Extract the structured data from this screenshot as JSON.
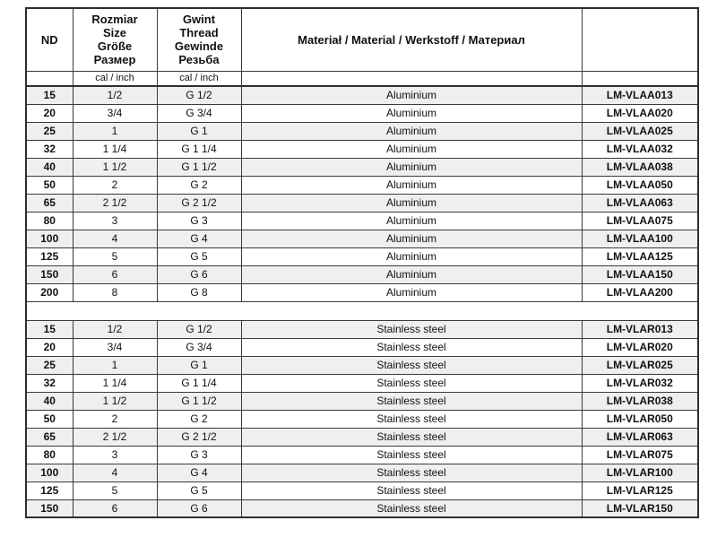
{
  "table": {
    "headers": {
      "nd": "ND",
      "size_title": "Rozmiar\nSize\nGröße\nРазмер",
      "thread_title": "Gwint\nThread\nGewinde\nРезьба",
      "material_title": "Materiał / Material / Werkstoff / Материал",
      "part_title": "",
      "size_unit": "cal / inch",
      "thread_unit": "cal / inch"
    },
    "sections": [
      {
        "name": "aluminium",
        "rows": [
          {
            "nd": "15",
            "size": "1/2",
            "thread": "G 1/2",
            "material": "Aluminium",
            "part": "LM-VLAA013"
          },
          {
            "nd": "20",
            "size": "3/4",
            "thread": "G 3/4",
            "material": "Aluminium",
            "part": "LM-VLAA020"
          },
          {
            "nd": "25",
            "size": "1",
            "thread": "G 1",
            "material": "Aluminium",
            "part": "LM-VLAA025"
          },
          {
            "nd": "32",
            "size": "1 1/4",
            "thread": "G 1 1/4",
            "material": "Aluminium",
            "part": "LM-VLAA032"
          },
          {
            "nd": "40",
            "size": "1 1/2",
            "thread": "G 1 1/2",
            "material": "Aluminium",
            "part": "LM-VLAA038"
          },
          {
            "nd": "50",
            "size": "2",
            "thread": "G 2",
            "material": "Aluminium",
            "part": "LM-VLAA050"
          },
          {
            "nd": "65",
            "size": "2 1/2",
            "thread": "G 2 1/2",
            "material": "Aluminium",
            "part": "LM-VLAA063"
          },
          {
            "nd": "80",
            "size": "3",
            "thread": "G 3",
            "material": "Aluminium",
            "part": "LM-VLAA075"
          },
          {
            "nd": "100",
            "size": "4",
            "thread": "G 4",
            "material": "Aluminium",
            "part": "LM-VLAA100"
          },
          {
            "nd": "125",
            "size": "5",
            "thread": "G 5",
            "material": "Aluminium",
            "part": "LM-VLAA125"
          },
          {
            "nd": "150",
            "size": "6",
            "thread": "G 6",
            "material": "Aluminium",
            "part": "LM-VLAA150"
          },
          {
            "nd": "200",
            "size": "8",
            "thread": "G 8",
            "material": "Aluminium",
            "part": "LM-VLAA200"
          }
        ]
      },
      {
        "name": "stainless-steel",
        "rows": [
          {
            "nd": "15",
            "size": "1/2",
            "thread": "G 1/2",
            "material": "Stainless steel",
            "part": "LM-VLAR013"
          },
          {
            "nd": "20",
            "size": "3/4",
            "thread": "G 3/4",
            "material": "Stainless steel",
            "part": "LM-VLAR020"
          },
          {
            "nd": "25",
            "size": "1",
            "thread": "G 1",
            "material": "Stainless steel",
            "part": "LM-VLAR025"
          },
          {
            "nd": "32",
            "size": "1 1/4",
            "thread": "G 1 1/4",
            "material": "Stainless steel",
            "part": "LM-VLAR032"
          },
          {
            "nd": "40",
            "size": "1 1/2",
            "thread": "G 1 1/2",
            "material": "Stainless steel",
            "part": "LM-VLAR038"
          },
          {
            "nd": "50",
            "size": "2",
            "thread": "G 2",
            "material": "Stainless steel",
            "part": "LM-VLAR050"
          },
          {
            "nd": "65",
            "size": "2 1/2",
            "thread": "G 2 1/2",
            "material": "Stainless steel",
            "part": "LM-VLAR063"
          },
          {
            "nd": "80",
            "size": "3",
            "thread": "G 3",
            "material": "Stainless steel",
            "part": "LM-VLAR075"
          },
          {
            "nd": "100",
            "size": "4",
            "thread": "G 4",
            "material": "Stainless steel",
            "part": "LM-VLAR100"
          },
          {
            "nd": "125",
            "size": "5",
            "thread": "G 5",
            "material": "Stainless steel",
            "part": "LM-VLAR125"
          },
          {
            "nd": "150",
            "size": "6",
            "thread": "G 6",
            "material": "Stainless steel",
            "part": "LM-VLAR150"
          }
        ]
      }
    ]
  },
  "colors": {
    "stripe": "#efefef",
    "border": "#3a3a3a",
    "text": "#111111",
    "background": "#ffffff"
  }
}
